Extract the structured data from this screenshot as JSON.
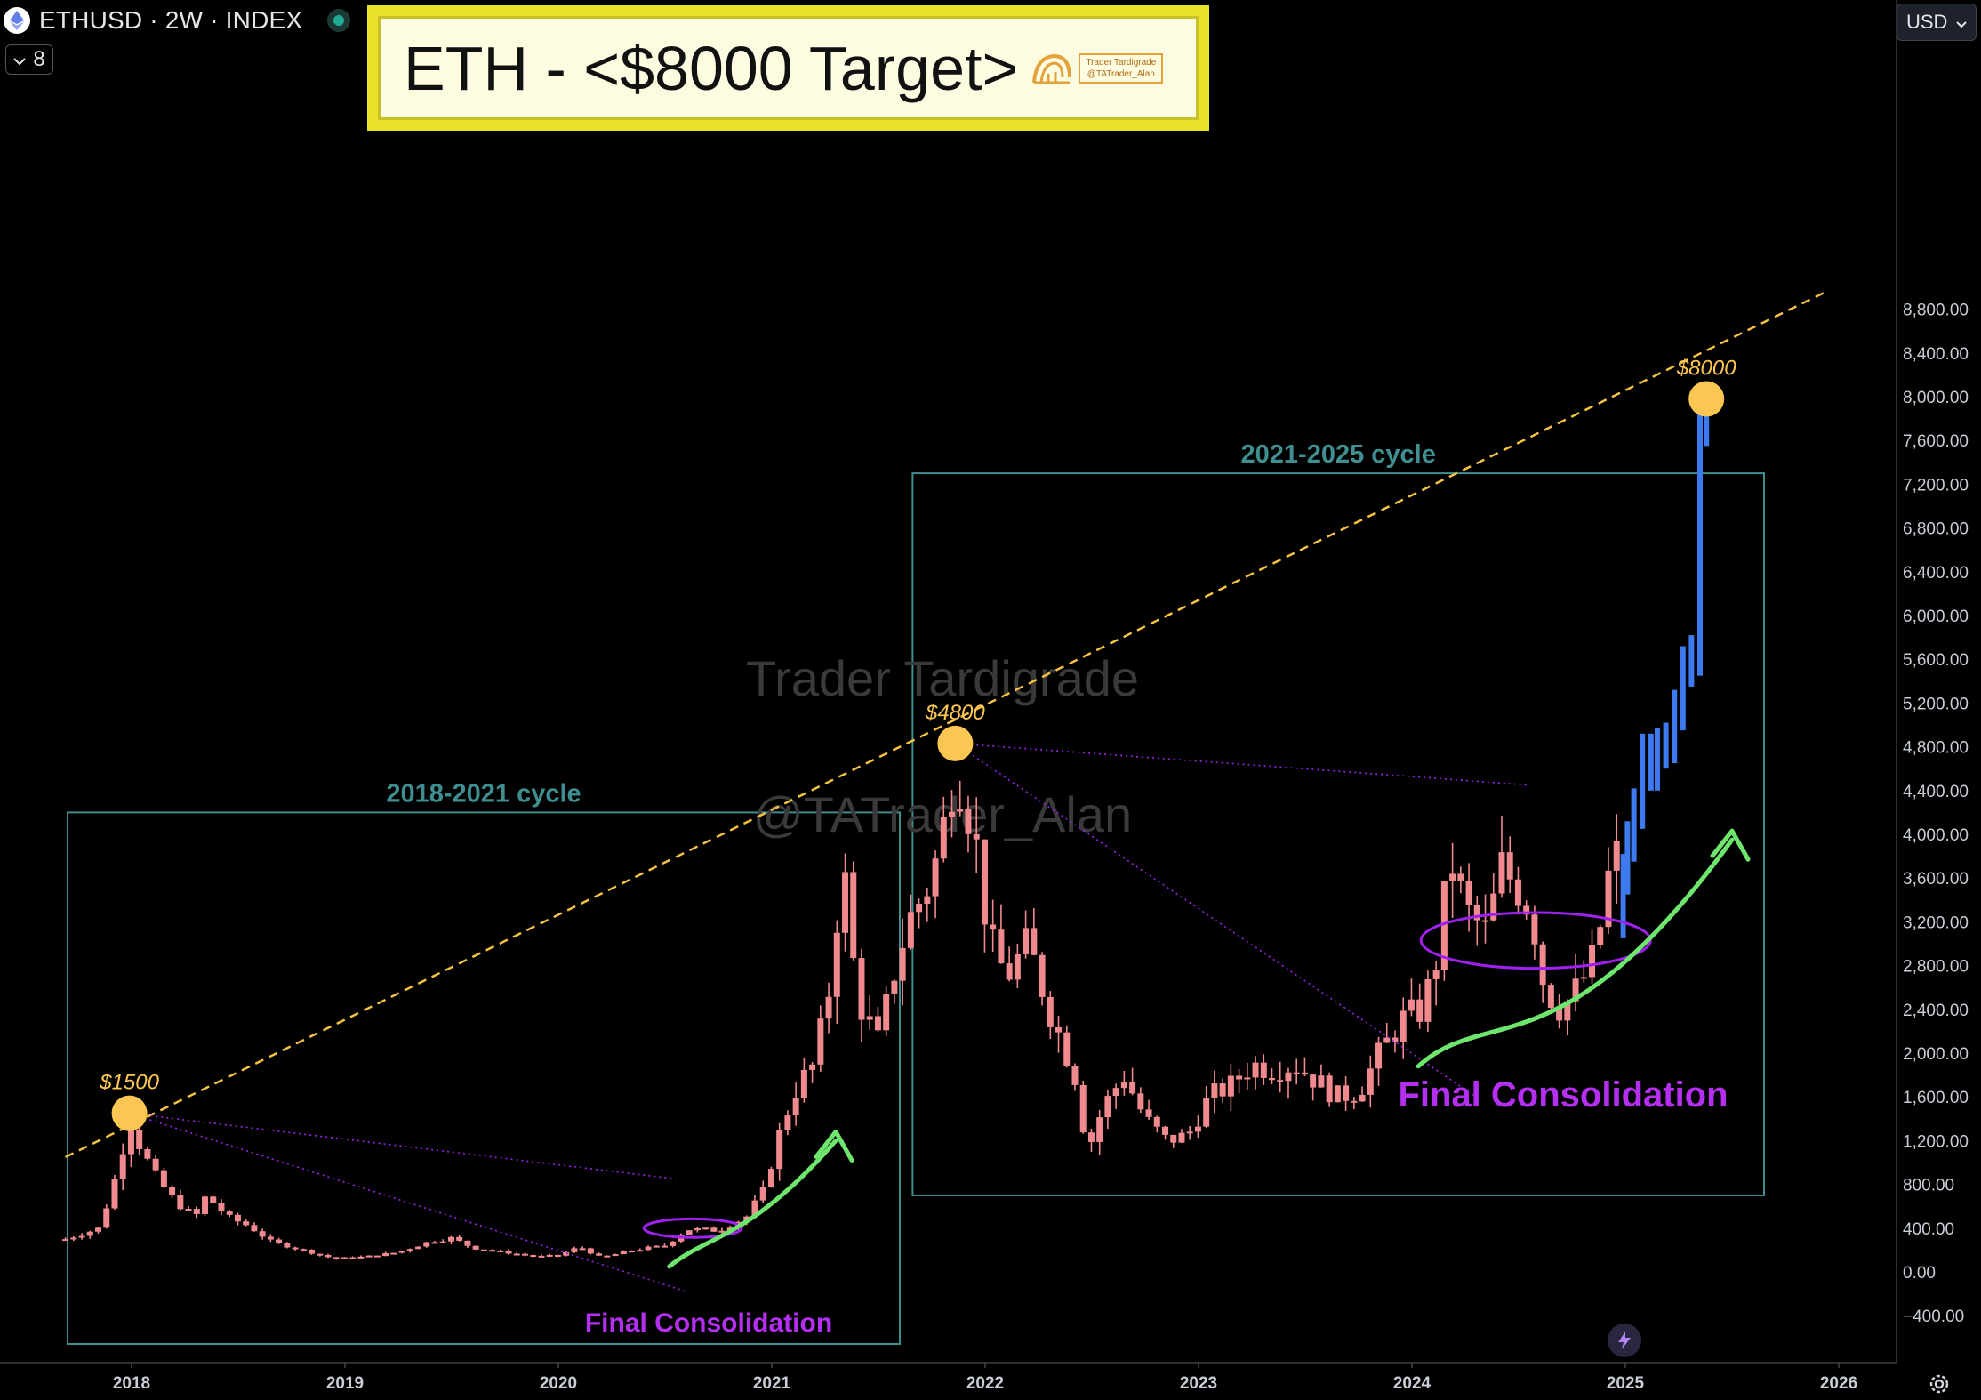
{
  "header": {
    "symbol": "ETHUSD · 2W · INDEX",
    "indicator_count": "8",
    "currency": "USD",
    "icons": [
      "ethereum-icon",
      "live-status-icon",
      "chevron-down-icon",
      "gear-icon",
      "lightning-icon"
    ]
  },
  "title_banner": {
    "text": "ETH - <$8000 Target>",
    "logo_line1": "Trader Tardigrade",
    "logo_line2": "@TATrader_Alan"
  },
  "watermark": {
    "line1": "Trader Tardigrade",
    "line2": "@TATrader_Alan"
  },
  "chart_data": {
    "type": "candlestick",
    "x_axis": {
      "ticks": [
        "2018",
        "2019",
        "2020",
        "2021",
        "2022",
        "2023",
        "2024",
        "2025",
        "2026"
      ]
    },
    "y_axis": {
      "ticks": [
        "8,800.00",
        "8,400.00",
        "8,000.00",
        "7,600.00",
        "7,200.00",
        "6,800.00",
        "6,400.00",
        "6,000.00",
        "5,600.00",
        "5,200.00",
        "4,800.00",
        "4,400.00",
        "4,000.00",
        "3,600.00",
        "3,200.00",
        "2,800.00",
        "2,400.00",
        "2,000.00",
        "1,600.00",
        "1,200.00",
        "800.00",
        "400.00",
        "0.00",
        "−400.00"
      ],
      "range": [
        -550,
        9250
      ]
    },
    "colors": {
      "candle": "#f08a8e",
      "projection": "#3d7af0",
      "trendline": "#f5c242",
      "marker": "#fcc652",
      "cycle_box": "#3f8e90",
      "consolidation": "#a020f0",
      "arrow": "#6ee66e"
    },
    "cycles": [
      {
        "label": "2018-2021 cycle",
        "start": 2017.7,
        "end": 2021.6
      },
      {
        "label": "2021-2025 cycle",
        "start": 2021.66,
        "end": 2025.65
      }
    ],
    "peak_markers": [
      {
        "label": "$1500",
        "date": 2017.99,
        "price": 1450
      },
      {
        "label": "$4800",
        "date": 2021.86,
        "price": 4830
      },
      {
        "label": "$8000",
        "date": 2025.38,
        "price": 7980
      }
    ],
    "trendline": {
      "from": [
        2017.69,
        1050
      ],
      "to": [
        2025.93,
        8950
      ]
    },
    "annotations": [
      {
        "text": "Final Consolidation",
        "cycle": 1
      },
      {
        "text": "Final Consolidation",
        "cycle": 2
      }
    ],
    "price_path": [
      [
        2017.69,
        300
      ],
      [
        2017.85,
        400
      ],
      [
        2017.93,
        900
      ],
      [
        2017.99,
        1400
      ],
      [
        2018.05,
        1100
      ],
      [
        2018.12,
        850
      ],
      [
        2018.2,
        650
      ],
      [
        2018.3,
        500
      ],
      [
        2018.35,
        700
      ],
      [
        2018.45,
        500
      ],
      [
        2018.55,
        420
      ],
      [
        2018.65,
        280
      ],
      [
        2018.8,
        200
      ],
      [
        2018.95,
        120
      ],
      [
        2019.1,
        140
      ],
      [
        2019.25,
        180
      ],
      [
        2019.4,
        280
      ],
      [
        2019.5,
        310
      ],
      [
        2019.6,
        220
      ],
      [
        2019.75,
        180
      ],
      [
        2019.9,
        140
      ],
      [
        2020.0,
        150
      ],
      [
        2020.1,
        230
      ],
      [
        2020.2,
        130
      ],
      [
        2020.35,
        200
      ],
      [
        2020.5,
        240
      ],
      [
        2020.6,
        390
      ],
      [
        2020.75,
        380
      ],
      [
        2020.88,
        500
      ],
      [
        2020.96,
        740
      ],
      [
        2021.05,
        1350
      ],
      [
        2021.12,
        1700
      ],
      [
        2021.2,
        1900
      ],
      [
        2021.28,
        2700
      ],
      [
        2021.33,
        3800
      ],
      [
        2021.4,
        2500
      ],
      [
        2021.5,
        2100
      ],
      [
        2021.58,
        2800
      ],
      [
        2021.64,
        3200
      ],
      [
        2021.75,
        3600
      ],
      [
        2021.82,
        4200
      ],
      [
        2021.86,
        4700
      ],
      [
        2021.95,
        4000
      ],
      [
        2022.02,
        3000
      ],
      [
        2022.1,
        2700
      ],
      [
        2022.2,
        3000
      ],
      [
        2022.3,
        2400
      ],
      [
        2022.42,
        1800
      ],
      [
        2022.48,
        1100
      ],
      [
        2022.55,
        1500
      ],
      [
        2022.65,
        1800
      ],
      [
        2022.75,
        1400
      ],
      [
        2022.85,
        1200
      ],
      [
        2022.95,
        1250
      ],
      [
        2023.05,
        1600
      ],
      [
        2023.15,
        1700
      ],
      [
        2023.25,
        1900
      ],
      [
        2023.35,
        1850
      ],
      [
        2023.45,
        1900
      ],
      [
        2023.55,
        1750
      ],
      [
        2023.65,
        1600
      ],
      [
        2023.75,
        1650
      ],
      [
        2023.85,
        2000
      ],
      [
        2023.95,
        2300
      ],
      [
        2024.05,
        2400
      ],
      [
        2024.12,
        2900
      ],
      [
        2024.18,
        3800
      ],
      [
        2024.25,
        3300
      ],
      [
        2024.35,
        3100
      ],
      [
        2024.42,
        3700
      ],
      [
        2024.5,
        3500
      ],
      [
        2024.56,
        3300
      ],
      [
        2024.62,
        2600
      ],
      [
        2024.7,
        2400
      ],
      [
        2024.78,
        2600
      ],
      [
        2024.86,
        2900
      ],
      [
        2024.92,
        3600
      ],
      [
        2024.96,
        3800
      ]
    ],
    "projection_path": [
      [
        2024.99,
        3700
      ],
      [
        2025.01,
        4000
      ],
      [
        2025.04,
        4300
      ],
      [
        2025.08,
        4800
      ],
      [
        2025.12,
        4650
      ],
      [
        2025.15,
        4850
      ],
      [
        2025.19,
        4900
      ],
      [
        2025.23,
        5200
      ],
      [
        2025.27,
        5600
      ],
      [
        2025.31,
        5700
      ],
      [
        2025.35,
        7800
      ],
      [
        2025.38,
        7950
      ]
    ]
  }
}
